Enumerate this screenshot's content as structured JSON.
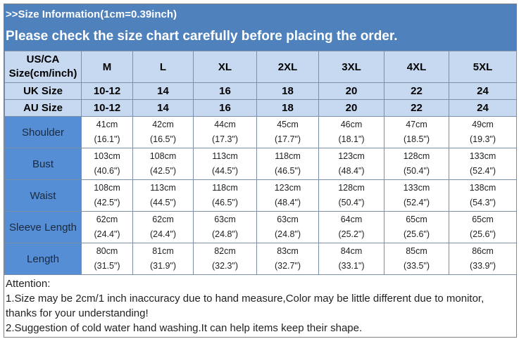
{
  "title": ">>Size Information(1cm=0.39inch)",
  "subtitle": "Please check the size chart carefully before placing the order.",
  "header": {
    "label": [
      "US/CA",
      "Size(cm/inch)"
    ],
    "sizes": [
      "M",
      "L",
      "XL",
      "2XL",
      "3XL",
      "4XL",
      "5XL"
    ]
  },
  "uk": {
    "label": "UK Size",
    "values": [
      "10-12",
      "14",
      "16",
      "18",
      "20",
      "22",
      "24"
    ]
  },
  "au": {
    "label": "AU Size",
    "values": [
      "10-12",
      "14",
      "16",
      "18",
      "20",
      "22",
      "24"
    ]
  },
  "rows": [
    {
      "label": "Shoulder",
      "cm": [
        "41cm",
        "42cm",
        "44cm",
        "45cm",
        "46cm",
        "47cm",
        "49cm"
      ],
      "inch": [
        "(16.1\")",
        "(16.5\")",
        "(17.3\")",
        "(17.7\")",
        "(18.1\")",
        "(18.5\")",
        "(19.3\")"
      ]
    },
    {
      "label": "Bust",
      "cm": [
        "103cm",
        "108cm",
        "113cm",
        "118cm",
        "123cm",
        "128cm",
        "133cm"
      ],
      "inch": [
        "(40.6\")",
        "(42.5\")",
        "(44.5\")",
        "(46.5\")",
        "(48.4\")",
        "(50.4\")",
        "(52.4\")"
      ]
    },
    {
      "label": "Waist",
      "cm": [
        "108cm",
        "113cm",
        "118cm",
        "123cm",
        "128cm",
        "133cm",
        "138cm"
      ],
      "inch": [
        "(42.5\")",
        "(44.5\")",
        "(46.5\")",
        "(48.4\")",
        "(50.4\")",
        "(52.4\")",
        "(54.3\")"
      ]
    },
    {
      "label": "Sleeve Length",
      "cm": [
        "62cm",
        "62cm",
        "63cm",
        "63cm",
        "64cm",
        "65cm",
        "65cm"
      ],
      "inch": [
        "(24.4\")",
        "(24.4\")",
        "(24.8\")",
        "(24.8\")",
        "(25.2\")",
        "(25.6\")",
        "(25.6\")"
      ]
    },
    {
      "label": "Length",
      "cm": [
        "80cm",
        "81cm",
        "82cm",
        "83cm",
        "84cm",
        "85cm",
        "86cm"
      ],
      "inch": [
        "(31.5\")",
        "(31.9\")",
        "(32.3\")",
        "(32.7\")",
        "(33.1\")",
        "(33.5\")",
        "(33.9\")"
      ]
    }
  ],
  "attention": [
    "Attention:",
    "1.Size may be 2cm/1 inch inaccuracy due to hand measure,Color may be little different due to monitor, thanks for your understanding!",
    "2.Suggestion of cold water hand washing.It can help items keep their shape."
  ]
}
